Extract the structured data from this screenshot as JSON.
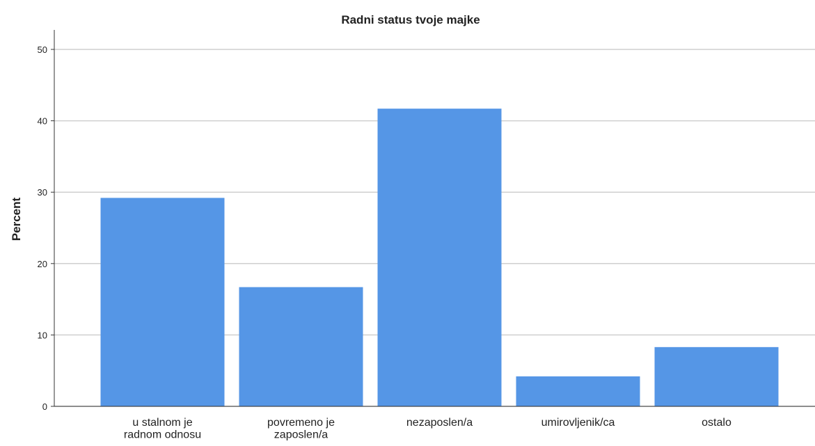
{
  "chart_data": {
    "type": "bar",
    "title": "Radni status tvoje majke",
    "y_label": "Percent",
    "categories": [
      "u stalnom je\nradnom odnosu",
      "povremeno je\nzaposlen/a",
      "nezaposlen/a",
      "umirovljenik/ca",
      "ostalo"
    ],
    "values": [
      29.2,
      16.7,
      41.7,
      4.2,
      8.3
    ],
    "color": "#5596e6",
    "ylim": [
      0,
      50
    ],
    "yticks": [
      0,
      10,
      20,
      30,
      40,
      50
    ],
    "grid": true
  }
}
